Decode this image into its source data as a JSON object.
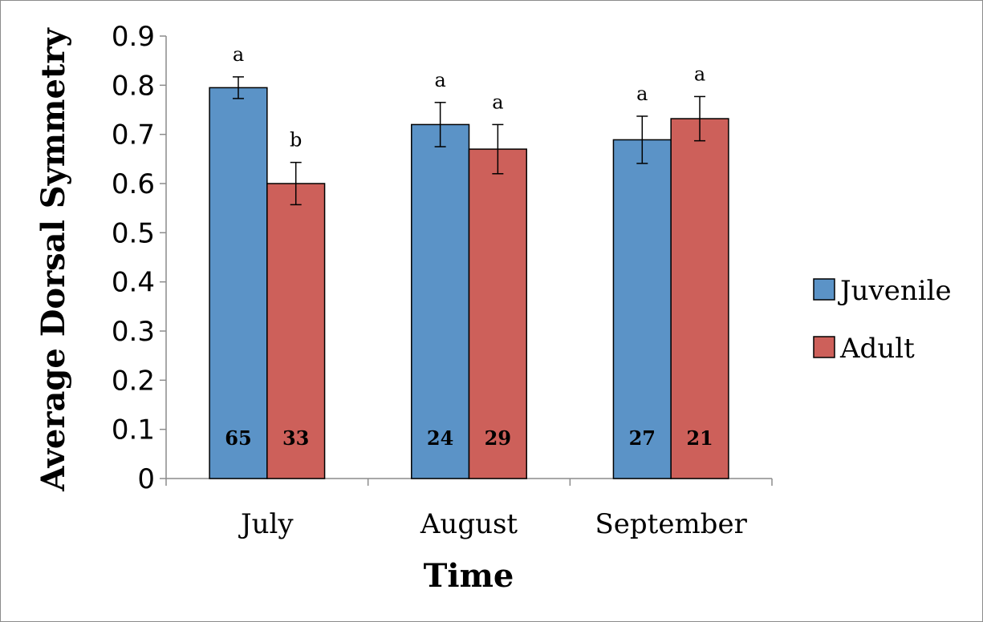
{
  "chart_data": {
    "type": "bar",
    "title": "",
    "xlabel": "Time",
    "ylabel": "Average Dorsal Symmetry",
    "categories": [
      "July",
      "August",
      "September"
    ],
    "ylim": [
      0,
      0.9
    ],
    "yticks": [
      "0",
      "0.1",
      "0.2",
      "0.3",
      "0.4",
      "0.5",
      "0.6",
      "0.7",
      "0.8",
      "0.9"
    ],
    "grid": false,
    "legend_position": "right",
    "series": [
      {
        "name": "Juvenile",
        "color": "#5b93c7",
        "values": [
          0.795,
          0.72,
          0.689
        ],
        "errors": [
          0.022,
          0.045,
          0.048
        ],
        "significance": [
          "a",
          "a",
          "a"
        ],
        "n": [
          "65",
          "24",
          "27"
        ]
      },
      {
        "name": "Adult",
        "color": "#cd605a",
        "values": [
          0.6,
          0.67,
          0.732
        ],
        "errors": [
          0.043,
          0.05,
          0.045
        ],
        "significance": [
          "b",
          "a",
          "a"
        ],
        "n": [
          "33",
          "29",
          "21"
        ]
      }
    ]
  }
}
